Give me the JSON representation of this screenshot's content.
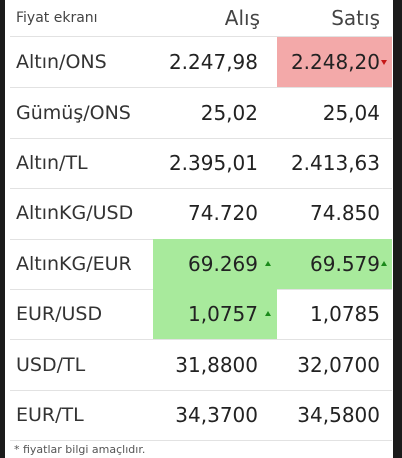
{
  "table": {
    "header": [
      "Fiyat ekranı",
      "Alış",
      "Satış"
    ],
    "rows": [
      [
        "Altın/ONS",
        "2.247,98",
        "2.248,20"
      ],
      [
        "Gümüş/ONS",
        "25,02",
        "25,04"
      ],
      [
        "Altın/TL",
        "2.395,01",
        "2.413,63"
      ],
      [
        "AltınKG/USD",
        "74.720",
        "74.850"
      ],
      [
        "AltınKG/EUR",
        "69.269",
        "69.579"
      ],
      [
        "EUR/USD",
        "1,0757",
        "1,0785"
      ],
      [
        "USD/TL",
        "31,8800",
        "32,0700"
      ],
      [
        "EUR/TL",
        "34,3700",
        "34,5800"
      ]
    ]
  },
  "footer": {
    "note": "* fiyatlar bilgi amaçlıdır."
  }
}
